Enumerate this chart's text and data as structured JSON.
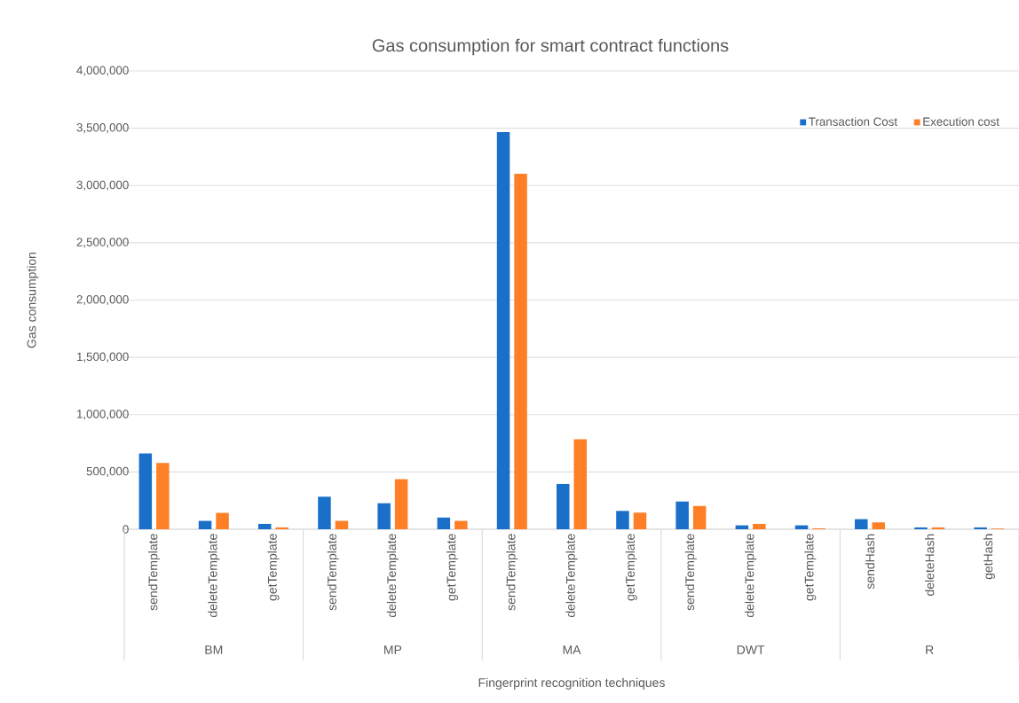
{
  "chart_data": {
    "type": "bar",
    "title": "Gas consumption  for smart contract functions",
    "xlabel": "Fingerprint recognition techniques",
    "ylabel": "Gas consumption",
    "categories": [
      "sendTemplate",
      "deleteTemplate",
      "getTemplate",
      "sendTemplate",
      "deleteTemplate",
      "getTemplate",
      "sendTemplate",
      "deleteTemplate",
      "getTemplate",
      "sendTemplate",
      "deleteTemplate",
      "getTemplate",
      "sendHash",
      "deleteHash",
      "getHash"
    ],
    "annotations": [
      "BM",
      "MP",
      "MA",
      "DWT",
      "R"
    ],
    "series": [
      {
        "name": "Transaction Cost",
        "color": "#1a70c8",
        "values": [
          661000,
          73000,
          47000,
          284000,
          227000,
          102000,
          3467000,
          395000,
          160000,
          242000,
          34000,
          34000,
          88000,
          16000,
          16000
        ]
      },
      {
        "name": "Execution cost",
        "color": "#fe7f26",
        "values": [
          578000,
          143000,
          16000,
          73000,
          437000,
          73000,
          3103000,
          786000,
          145000,
          203000,
          47000,
          8000,
          60000,
          16000,
          6000
        ]
      }
    ],
    "ylim": [
      0,
      4000000
    ],
    "yticks": [
      0,
      {
        "value": 500000,
        "label": "500,000"
      },
      {
        "value": 1000000,
        "label": "1,000,000"
      },
      {
        "value": 1500000,
        "label": "1,500,000"
      },
      {
        "value": 2000000,
        "label": "2,000,000"
      },
      {
        "value": 2500000,
        "label": "2,500,000"
      },
      {
        "value": 3000000,
        "label": "3,000,000"
      },
      {
        "value": 3500000,
        "label": "3,500,000"
      },
      {
        "value": 4000000,
        "label": "4,000,000"
      }
    ],
    "grid": "y",
    "legend": "top right"
  }
}
